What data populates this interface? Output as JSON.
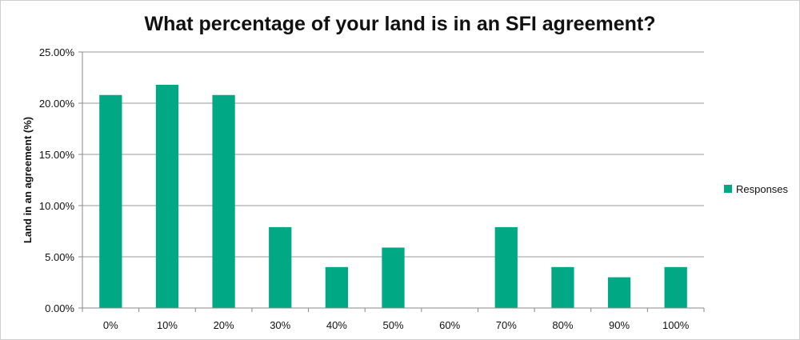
{
  "chart_data": {
    "type": "bar",
    "title": "What percentage of your land is in an SFI agreement?",
    "xlabel": "",
    "ylabel": "Land in an agreement (%)",
    "categories": [
      "0%",
      "10%",
      "20%",
      "30%",
      "40%",
      "50%",
      "60%",
      "70%",
      "80%",
      "90%",
      "100%"
    ],
    "series": [
      {
        "name": "Responses",
        "values": [
          20.8,
          21.8,
          20.8,
          7.9,
          4.0,
          5.9,
          0.0,
          7.9,
          4.0,
          3.0,
          4.0
        ]
      }
    ],
    "ylim": [
      0,
      25
    ],
    "yticks": [
      0,
      5,
      10,
      15,
      20,
      25
    ],
    "ytick_labels": [
      "0.00%",
      "5.00%",
      "10.00%",
      "15.00%",
      "20.00%",
      "25.00%"
    ],
    "grid": true,
    "legend_position": "right",
    "bar_color": "#00a884"
  }
}
